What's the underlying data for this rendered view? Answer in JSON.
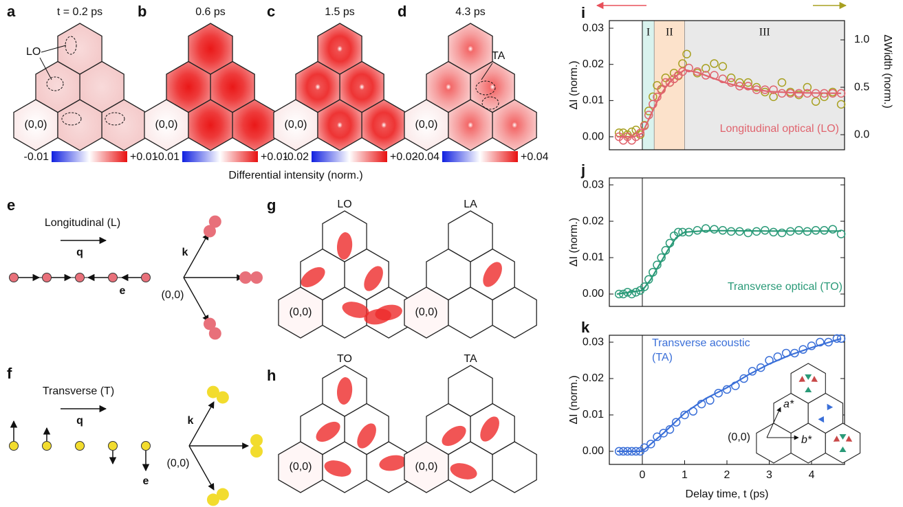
{
  "maps": [
    {
      "letter": "a",
      "title": "t = 0.2 ps",
      "scale": [
        "-0.01",
        "+0.01"
      ],
      "origin": "(0,0)",
      "annotation": "LO"
    },
    {
      "letter": "b",
      "title": "0.6 ps",
      "scale": [
        "-0.01",
        "+0.01"
      ],
      "origin": "(0,0)"
    },
    {
      "letter": "c",
      "title": "1.5 ps",
      "scale": [
        "-0.02",
        "+0.02"
      ],
      "origin": "(0,0)"
    },
    {
      "letter": "d",
      "title": "4.3 ps",
      "scale": [
        "-0.04",
        "+0.04"
      ],
      "origin": "(0,0)",
      "annotation": "TA"
    }
  ],
  "colorbar_label": "Differential intensity (norm.)",
  "modes": [
    {
      "letter": "e",
      "title": "Longitudinal (L)",
      "q": "q",
      "e": "e",
      "k": "k",
      "origin": "(0,0)"
    },
    {
      "letter": "f",
      "title": "Transverse (T)",
      "q": "q",
      "e": "e",
      "k": "k",
      "origin": "(0,0)"
    }
  ],
  "simulations": [
    {
      "letter": "g",
      "maps": [
        {
          "title": "LO",
          "origin": "(0,0)"
        },
        {
          "title": "LA",
          "origin": "(0,0)"
        }
      ]
    },
    {
      "letter": "h",
      "maps": [
        {
          "title": "TO",
          "origin": "(0,0)"
        },
        {
          "title": "TA",
          "origin": "(0,0)"
        }
      ]
    }
  ],
  "chart_data": [
    {
      "type": "scatter",
      "letter": "i",
      "ylabel": "ΔI (norm.)",
      "y2label": "ΔWidth (norm.)",
      "xlim": [
        -0.78,
        4.78
      ],
      "ylim": [
        -0.0036,
        0.0321
      ],
      "y2lim": [
        -0.159,
        1.203
      ],
      "yticks": [
        {
          "value": 0,
          "label": "0.00"
        },
        {
          "value": 0.01,
          "label": "0.01"
        },
        {
          "value": 0.02,
          "label": "0.02"
        },
        {
          "value": 0.03,
          "label": "0.03"
        }
      ],
      "y2ticks": [
        {
          "value": 0,
          "label": "0.0"
        },
        {
          "value": 0.5,
          "label": "0.5"
        },
        {
          "value": 1,
          "label": "1.0"
        }
      ],
      "vline": 0,
      "regions": [
        {
          "label": "I",
          "start": 0,
          "end": 0.28,
          "color": "#d9f3ee"
        },
        {
          "label": "II",
          "start": 0.28,
          "end": 1.0,
          "color": "#fce2cb"
        },
        {
          "label": "III",
          "start": 1.0,
          "end": 4.78,
          "color": "#e9e9e9"
        }
      ],
      "annotation": [
        "Longitudinal optical (LO)"
      ],
      "series": [
        {
          "style": "markers",
          "color": "#a8a020",
          "axis": "y2",
          "x": [
            -0.55,
            -0.45,
            -0.35,
            -0.25,
            -0.15,
            -0.05,
            0.05,
            0.15,
            0.25,
            0.35,
            0.45,
            0.55,
            0.65,
            0.75,
            0.85,
            0.95,
            1.05,
            1.3,
            1.5,
            1.7,
            1.9,
            2.1,
            2.3,
            2.5,
            2.7,
            2.9,
            3.1,
            3.3,
            3.5,
            3.7,
            3.9,
            4.1,
            4.3,
            4.5,
            4.7
          ],
          "values": [
            0.02,
            0.02,
            0.0,
            0.03,
            0.05,
            0.0,
            0.1,
            0.25,
            0.4,
            0.52,
            0.48,
            0.6,
            0.55,
            0.65,
            0.62,
            0.75,
            0.85,
            0.65,
            0.7,
            0.75,
            0.72,
            0.6,
            0.55,
            0.55,
            0.5,
            0.45,
            0.4,
            0.55,
            0.45,
            0.42,
            0.5,
            0.35,
            0.4,
            0.45,
            0.32
          ]
        },
        {
          "style": "markers",
          "color": "#e0646e",
          "x": [
            -0.55,
            -0.45,
            -0.35,
            -0.25,
            -0.15,
            -0.05,
            0.05,
            0.15,
            0.25,
            0.35,
            0.45,
            0.55,
            0.65,
            0.75,
            0.85,
            0.95,
            1.1,
            1.3,
            1.5,
            1.7,
            1.9,
            2.1,
            2.3,
            2.5,
            2.7,
            2.9,
            3.1,
            3.3,
            3.5,
            3.7,
            3.9,
            4.1,
            4.3,
            4.5,
            4.7
          ],
          "values": [
            0,
            -0.001,
            0,
            -0.001,
            0,
            0.001,
            0.003,
            0.006,
            0.009,
            0.011,
            0.013,
            0.015,
            0.015,
            0.016,
            0.017,
            0.018,
            0.019,
            0.018,
            0.017,
            0.017,
            0.016,
            0.015,
            0.014,
            0.014,
            0.013,
            0.013,
            0.013,
            0.012,
            0.012,
            0.012,
            0.012,
            0.012,
            0.012,
            0.012,
            0.012
          ]
        },
        {
          "style": "line",
          "color": "#e0646e",
          "x": [
            -0.6,
            -0.2,
            0,
            0.2,
            0.4,
            0.6,
            0.8,
            1.0,
            1.3,
            1.6,
            2.0,
            2.5,
            3.0,
            3.5,
            4.0,
            4.7
          ],
          "values": [
            0,
            0,
            0.001,
            0.006,
            0.011,
            0.0145,
            0.0168,
            0.0185,
            0.0178,
            0.0165,
            0.0148,
            0.0133,
            0.0125,
            0.0122,
            0.0121,
            0.012
          ]
        }
      ]
    },
    {
      "type": "scatter",
      "letter": "j",
      "ylabel": "ΔI (norm.)",
      "xlim": [
        -0.78,
        4.78
      ],
      "ylim": [
        -0.0034,
        0.0319
      ],
      "yticks": [
        {
          "value": 0,
          "label": "0.00"
        },
        {
          "value": 0.01,
          "label": "0.01"
        },
        {
          "value": 0.02,
          "label": "0.02"
        },
        {
          "value": 0.03,
          "label": "0.03"
        }
      ],
      "vline": 0,
      "annotation": [
        "Transverse optical (TO)"
      ],
      "series": [
        {
          "style": "markers",
          "color": "#2a9a78",
          "x": [
            -0.55,
            -0.45,
            -0.35,
            -0.25,
            -0.15,
            -0.05,
            0.05,
            0.15,
            0.25,
            0.35,
            0.45,
            0.55,
            0.65,
            0.75,
            0.85,
            0.95,
            1.1,
            1.3,
            1.5,
            1.7,
            1.9,
            2.1,
            2.3,
            2.5,
            2.7,
            2.9,
            3.1,
            3.3,
            3.5,
            3.7,
            3.9,
            4.1,
            4.3,
            4.5,
            4.7
          ],
          "values": [
            0,
            0,
            0.0005,
            0,
            0.0005,
            0.001,
            0.002,
            0.004,
            0.006,
            0.008,
            0.01,
            0.012,
            0.014,
            0.016,
            0.017,
            0.017,
            0.017,
            0.0175,
            0.018,
            0.0178,
            0.0175,
            0.0172,
            0.0172,
            0.0168,
            0.0172,
            0.0175,
            0.017,
            0.0168,
            0.0172,
            0.0175,
            0.0172,
            0.0175,
            0.0175,
            0.0178,
            0.0165
          ]
        },
        {
          "style": "line",
          "color": "#2a9a78",
          "x": [
            -0.6,
            0,
            0.2,
            0.4,
            0.6,
            0.8,
            1.0,
            1.5,
            2,
            3,
            4,
            4.7
          ],
          "values": [
            0,
            0.001,
            0.004,
            0.008,
            0.012,
            0.0155,
            0.017,
            0.0174,
            0.0174,
            0.0173,
            0.0173,
            0.0173
          ]
        }
      ]
    },
    {
      "type": "scatter",
      "letter": "k",
      "ylabel": "ΔI (norm.)",
      "xlabel": "Delay time, t (ps)",
      "xlim": [
        -0.78,
        4.78
      ],
      "ylim": [
        -0.0036,
        0.0319
      ],
      "xticks": [
        0,
        1,
        2,
        3,
        4
      ],
      "yticks": [
        {
          "value": 0,
          "label": "0.00"
        },
        {
          "value": 0.01,
          "label": "0.01"
        },
        {
          "value": 0.02,
          "label": "0.02"
        },
        {
          "value": 0.03,
          "label": "0.03"
        }
      ],
      "vline": 0,
      "annotation": [
        "Transverse acoustic",
        "(TA)"
      ],
      "inset": {
        "a": "a*",
        "b": "b*",
        "origin": "(0,0)"
      },
      "series": [
        {
          "style": "markers",
          "color": "#3a6fd8",
          "x": [
            -0.55,
            -0.45,
            -0.35,
            -0.25,
            -0.15,
            -0.05,
            0.05,
            0.2,
            0.35,
            0.5,
            0.65,
            0.8,
            1.0,
            1.2,
            1.4,
            1.6,
            1.8,
            2.0,
            2.2,
            2.4,
            2.6,
            2.8,
            3.0,
            3.2,
            3.4,
            3.6,
            3.8,
            4.0,
            4.2,
            4.4,
            4.6,
            4.7
          ],
          "values": [
            0,
            0,
            0,
            0,
            0,
            0,
            0.001,
            0.002,
            0.004,
            0.005,
            0.006,
            0.008,
            0.01,
            0.011,
            0.013,
            0.014,
            0.016,
            0.017,
            0.018,
            0.02,
            0.022,
            0.023,
            0.025,
            0.026,
            0.027,
            0.027,
            0.028,
            0.029,
            0.03,
            0.03,
            0.031,
            0.031
          ]
        },
        {
          "style": "line",
          "color": "#3a6fd8",
          "x": [
            -0.6,
            0,
            0.5,
            1,
            1.5,
            2,
            2.5,
            3,
            3.5,
            4,
            4.7
          ],
          "values": [
            0,
            0,
            0.005,
            0.0105,
            0.0145,
            0.0175,
            0.021,
            0.024,
            0.0265,
            0.0285,
            0.031
          ]
        }
      ]
    }
  ]
}
